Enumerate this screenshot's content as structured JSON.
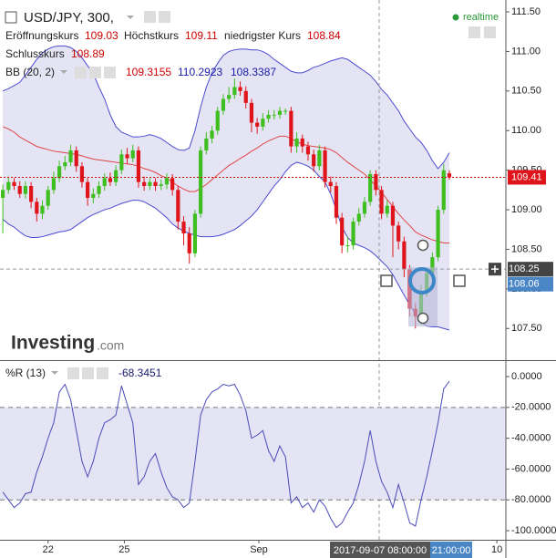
{
  "header": {
    "symbol": "USD/JPY, 300,",
    "realtime": "realtime",
    "open_label": "Eröffnungskurs",
    "open": 109.03,
    "high_label": "Höchstkurs",
    "high": 109.11,
    "low_label": "niedrigster Kurs",
    "low": 108.84,
    "close_label": "Schlusskurs",
    "close": 108.89,
    "bb_label": "BB (20, 2)",
    "bb_middle": 109.3155,
    "bb_upper": 110.2923,
    "bb_lower": 108.3387,
    "brand": "Investing",
    "brand_suffix": ".com"
  },
  "chart_data": [
    {
      "type": "candlestick",
      "up_color": "#3fbf1f",
      "down_color": "#e0151b",
      "xlim": [
        -0.5,
        89
      ],
      "ylim": [
        107.1,
        111.65
      ],
      "xticks": [
        {
          "value": 8,
          "label": "22"
        },
        {
          "value": 21.5,
          "label": "25"
        },
        {
          "value": 45.3,
          "label": "Sep"
        },
        {
          "value": 87.4,
          "label": "10"
        }
      ],
      "yticks": [
        {
          "value": 111.5,
          "label": "111.50"
        },
        {
          "value": 111,
          "label": "111.00"
        },
        {
          "value": 110.5,
          "label": "110.50"
        },
        {
          "value": 110,
          "label": "110.00"
        },
        {
          "value": 109.5,
          "label": "109.50"
        },
        {
          "value": 109,
          "label": "109.00"
        },
        {
          "value": 108.5,
          "label": "108.50"
        },
        {
          "value": 108,
          "label": "108.00"
        },
        {
          "value": 107.5,
          "label": "107.50"
        }
      ],
      "open": [
        109.15,
        109.25,
        109.35,
        109.3,
        109.2,
        109.3,
        109.1,
        108.95,
        109.05,
        109.25,
        109.4,
        109.55,
        109.6,
        109.75,
        109.55,
        109.35,
        109.15,
        109.2,
        109.3,
        109.4,
        109.35,
        109.5,
        109.7,
        109.65,
        109.75,
        109.35,
        109.3,
        109.35,
        109.3,
        109.32,
        109.4,
        109.25,
        108.85,
        108.7,
        108.45,
        108.95,
        109.75,
        109.9,
        110.0,
        110.25,
        110.4,
        110.45,
        110.55,
        110.5,
        110.35,
        110.1,
        110.05,
        110.15,
        110.2,
        110.2,
        110.25,
        110.25,
        109.8,
        109.9,
        109.8,
        109.7,
        109.55,
        109.75,
        109.35,
        109.3,
        108.9,
        108.55,
        108.55,
        108.85,
        108.95,
        109.1,
        109.45,
        109.25,
        108.95,
        109.05,
        108.8,
        108.6,
        108.25,
        107.75,
        107.65,
        107.95,
        108.2,
        108.4,
        109.0,
        109.46
      ],
      "high": [
        109.32,
        109.42,
        109.4,
        109.36,
        109.36,
        109.35,
        109.15,
        109.12,
        109.3,
        109.48,
        109.62,
        109.68,
        109.82,
        109.8,
        109.6,
        109.4,
        109.27,
        109.36,
        109.46,
        109.47,
        109.56,
        109.76,
        109.78,
        109.82,
        109.8,
        109.42,
        109.4,
        109.4,
        109.38,
        109.46,
        109.45,
        109.3,
        108.92,
        108.78,
        109.0,
        109.8,
        109.98,
        110.06,
        110.3,
        110.46,
        110.55,
        110.66,
        110.62,
        110.56,
        110.4,
        110.16,
        110.22,
        110.26,
        110.26,
        110.3,
        110.28,
        110.3,
        109.98,
        109.95,
        109.86,
        109.76,
        109.82,
        109.8,
        109.42,
        109.35,
        108.96,
        108.66,
        108.9,
        109.02,
        109.16,
        109.5,
        109.5,
        109.3,
        109.12,
        109.1,
        108.85,
        108.66,
        108.3,
        107.82,
        108.05,
        108.25,
        108.46,
        109.05,
        109.58,
        109.5
      ],
      "low": [
        108.7,
        109.2,
        109.25,
        109.15,
        109.14,
        109.02,
        108.85,
        108.88,
        109.0,
        109.2,
        109.35,
        109.5,
        109.55,
        109.48,
        109.28,
        109.05,
        109.08,
        109.15,
        109.24,
        109.3,
        109.3,
        109.45,
        109.58,
        109.6,
        109.28,
        109.24,
        109.25,
        109.24,
        109.25,
        109.26,
        109.18,
        108.75,
        108.55,
        108.32,
        108.4,
        108.9,
        109.7,
        109.84,
        109.95,
        110.2,
        110.35,
        110.4,
        110.44,
        110.28,
        109.98,
        109.96,
        110.0,
        110.1,
        110.14,
        110.15,
        110.2,
        109.72,
        109.72,
        109.72,
        109.62,
        109.48,
        109.5,
        109.28,
        109.22,
        108.82,
        108.45,
        108.46,
        108.5,
        108.8,
        108.9,
        109.05,
        109.18,
        108.88,
        108.9,
        108.4,
        108.5,
        108.15,
        107.65,
        107.5,
        107.55,
        107.9,
        108.15,
        108.35,
        108.95,
        109.38
      ],
      "close": [
        109.25,
        109.35,
        109.3,
        109.2,
        109.3,
        109.1,
        108.95,
        109.05,
        109.25,
        109.4,
        109.55,
        109.6,
        109.75,
        109.55,
        109.35,
        109.15,
        109.2,
        109.3,
        109.4,
        109.35,
        109.5,
        109.7,
        109.65,
        109.75,
        109.35,
        109.3,
        109.35,
        109.3,
        109.32,
        109.4,
        109.25,
        108.85,
        108.7,
        108.45,
        108.95,
        109.75,
        109.9,
        110.0,
        110.25,
        110.4,
        110.45,
        110.55,
        110.5,
        110.35,
        110.1,
        110.05,
        110.15,
        110.2,
        110.2,
        110.25,
        110.25,
        109.8,
        109.9,
        109.8,
        109.7,
        109.55,
        109.75,
        109.35,
        109.3,
        108.9,
        108.55,
        108.55,
        108.85,
        108.95,
        109.1,
        109.45,
        109.25,
        108.95,
        109.05,
        108.8,
        108.6,
        108.25,
        107.75,
        107.65,
        107.95,
        108.2,
        108.4,
        109.0,
        109.5,
        109.41
      ],
      "bands": {
        "fill": "#e4e4f4",
        "upper_color": "#4b4bd0",
        "middle_color": "#e04545",
        "upper": [
          110.5,
          110.53,
          110.57,
          110.61,
          110.7,
          110.8,
          110.9,
          110.98,
          111.03,
          111.06,
          111.07,
          111.07,
          111.05,
          111.0,
          110.92,
          110.82,
          110.72,
          110.55,
          110.4,
          110.2,
          110.05,
          109.98,
          109.95,
          109.92,
          109.92,
          109.93,
          109.95,
          109.93,
          109.9,
          109.85,
          109.8,
          109.76,
          109.75,
          109.78,
          110.0,
          110.3,
          110.55,
          110.73,
          110.85,
          110.95,
          111.0,
          111.02,
          111.03,
          111.03,
          111.02,
          111.02,
          111.0,
          110.96,
          110.9,
          110.85,
          110.8,
          110.75,
          110.73,
          110.73,
          110.76,
          110.8,
          110.82,
          110.85,
          110.88,
          110.9,
          110.92,
          110.9,
          110.85,
          110.8,
          110.75,
          110.7,
          110.62,
          110.52,
          110.45,
          110.35,
          110.25,
          110.12,
          110.02,
          109.92,
          109.85,
          109.75,
          109.62,
          109.52,
          109.6,
          109.72
        ],
        "middle": [
          110.05,
          110.02,
          109.98,
          109.92,
          109.88,
          109.84,
          109.8,
          109.78,
          109.76,
          109.74,
          109.73,
          109.72,
          109.71,
          109.7,
          109.68,
          109.66,
          109.64,
          109.63,
          109.62,
          109.61,
          109.6,
          109.59,
          109.58,
          109.57,
          109.55,
          109.52,
          109.5,
          109.47,
          109.43,
          109.4,
          109.35,
          109.3,
          109.26,
          109.23,
          109.23,
          109.27,
          109.32,
          109.38,
          109.44,
          109.5,
          109.56,
          109.6,
          109.65,
          109.69,
          109.74,
          109.78,
          109.83,
          109.87,
          109.9,
          109.93,
          109.93,
          109.9,
          109.86,
          109.83,
          109.81,
          109.8,
          109.79,
          109.78,
          109.76,
          109.72,
          109.66,
          109.6,
          109.55,
          109.5,
          109.45,
          109.38,
          109.3,
          109.22,
          109.13,
          109.04,
          108.95,
          108.87,
          108.8,
          108.72,
          108.68,
          108.65,
          108.62,
          108.6,
          108.58,
          108.58
        ],
        "lower": [
          108.88,
          108.82,
          108.78,
          108.72,
          108.67,
          108.65,
          108.65,
          108.66,
          108.68,
          108.7,
          108.72,
          108.73,
          108.75,
          108.8,
          108.85,
          108.9,
          108.94,
          108.97,
          109.0,
          109.02,
          109.05,
          109.08,
          109.1,
          109.12,
          109.12,
          109.1,
          109.06,
          109.02,
          108.96,
          108.9,
          108.82,
          108.77,
          108.73,
          108.7,
          108.68,
          108.66,
          108.66,
          108.66,
          108.67,
          108.69,
          108.72,
          108.75,
          108.8,
          108.86,
          108.92,
          109.0,
          109.1,
          109.2,
          109.3,
          109.38,
          109.48,
          109.56,
          109.6,
          109.58,
          109.55,
          109.5,
          109.42,
          109.35,
          109.2,
          109.0,
          108.78,
          108.65,
          108.58,
          108.55,
          108.52,
          108.48,
          108.42,
          108.35,
          108.28,
          108.18,
          108.05,
          107.92,
          107.8,
          107.68,
          107.58,
          107.53,
          107.52,
          107.52,
          107.5,
          107.48
        ]
      },
      "last_price": 109.41,
      "crosshair_price": 108.25,
      "marker_price": 108.06,
      "crosshair_time": "2017-09-07 08:00:00",
      "crosshair_time_end": "21:00:00"
    },
    {
      "type": "line",
      "title": "%R (13)",
      "current": -68.3451,
      "color": "#4b4bb8",
      "ylim": [
        -105.9,
        8.9
      ],
      "yticks": [
        {
          "value": 0,
          "label": "0.0000"
        },
        {
          "value": -20,
          "label": "-20.0000"
        },
        {
          "value": -40,
          "label": "-40.0000"
        },
        {
          "value": -60,
          "label": "-60.0000"
        },
        {
          "value": -80,
          "label": "-80.0000"
        },
        {
          "value": -100,
          "label": "-100.0000"
        }
      ],
      "levels": [
        -20,
        -80
      ],
      "values": [
        -75,
        -80,
        -85,
        -82,
        -76,
        -75,
        -62,
        -52,
        -40,
        -30,
        -10,
        -5,
        -15,
        -35,
        -55,
        -65,
        -55,
        -40,
        -30,
        -28,
        -25,
        -6,
        -18,
        -30,
        -70,
        -65,
        -55,
        -50,
        -62,
        -72,
        -78,
        -80,
        -85,
        -82,
        -55,
        -25,
        -15,
        -10,
        -8,
        -5,
        -6,
        -5,
        -12,
        -22,
        -40,
        -38,
        -35,
        -48,
        -55,
        -45,
        -52,
        -82,
        -78,
        -85,
        -82,
        -88,
        -80,
        -84,
        -92,
        -98,
        -95,
        -88,
        -82,
        -70,
        -55,
        -35,
        -55,
        -68,
        -75,
        -85,
        -70,
        -82,
        -95,
        -97,
        -80,
        -65,
        -48,
        -30,
        -8,
        -3
      ]
    }
  ]
}
